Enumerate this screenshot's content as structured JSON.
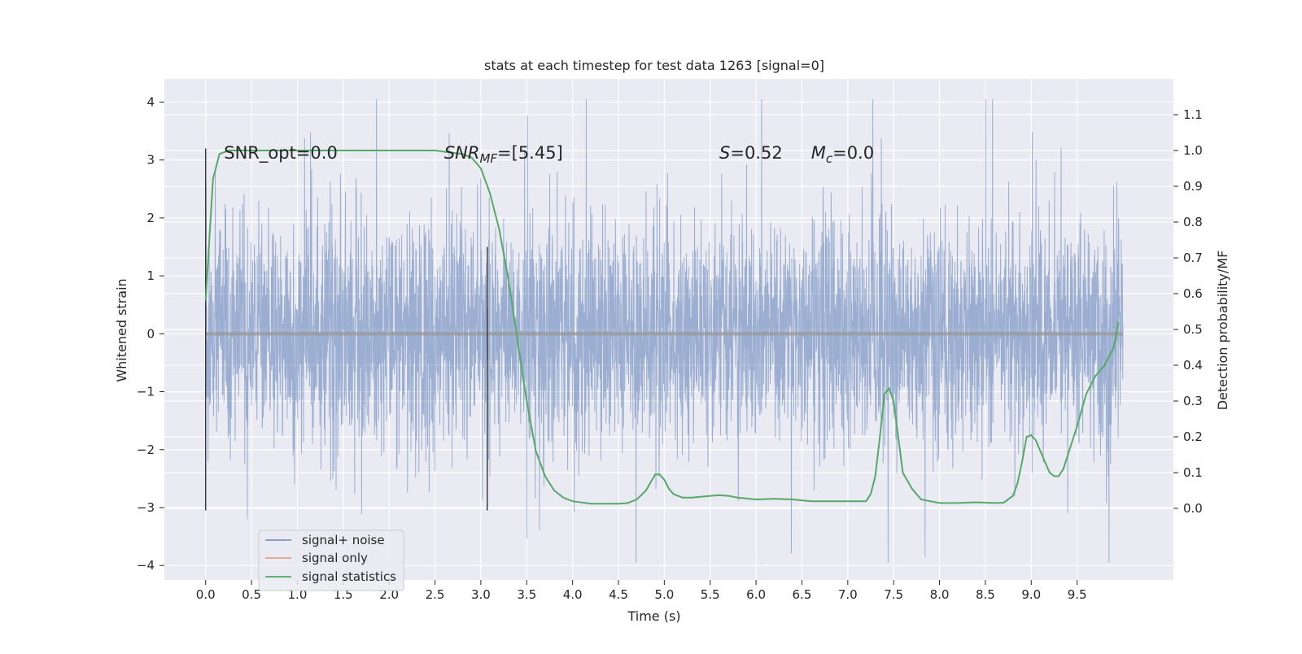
{
  "chart_data": {
    "type": "line",
    "title": "stats at each timestep for test data 1263 [signal=0]",
    "xlabel": "Time (s)",
    "ylabel_left": "Whitened strain",
    "ylabel_right": "Detection probability/MF",
    "xlim": [
      -0.45,
      10.55
    ],
    "ylim_left": [
      -4.25,
      4.4
    ],
    "ylim_right": [
      -0.2,
      1.2
    ],
    "x_ticks": [
      0.0,
      0.5,
      1.0,
      1.5,
      2.0,
      2.5,
      3.0,
      3.5,
      4.0,
      4.5,
      5.0,
      5.5,
      6.0,
      6.5,
      7.0,
      7.5,
      8.0,
      8.5,
      9.0,
      9.5
    ],
    "x_tick_labels": [
      "0.0",
      "0.5",
      "1.0",
      "1.5",
      "2.0",
      "2.5",
      "3.0",
      "3.5",
      "4.0",
      "4.5",
      "5.0",
      "5.5",
      "6.0",
      "6.5",
      "7.0",
      "7.5",
      "8.0",
      "8.5",
      "9.0",
      "9.5"
    ],
    "y_ticks_left": [
      -4,
      -3,
      -2,
      -1,
      0,
      1,
      2,
      3,
      4
    ],
    "y_tick_labels_left": [
      "−4",
      "−3",
      "−2",
      "−1",
      "0",
      "1",
      "2",
      "3",
      "4"
    ],
    "y_ticks_right": [
      0.0,
      0.1,
      0.2,
      0.3,
      0.4,
      0.5,
      0.6,
      0.7,
      0.8,
      0.9,
      1.0,
      1.1
    ],
    "y_tick_labels_right": [
      "0.0",
      "0.1",
      "0.2",
      "0.3",
      "0.4",
      "0.5",
      "0.6",
      "0.7",
      "0.8",
      "0.9",
      "1.0",
      "1.1"
    ],
    "grid": true,
    "legend_position": "lower-left",
    "colors": {
      "background": "#eaeaf2",
      "grid": "#ffffff",
      "signal_noise": "#4c72b0",
      "signal_only": "#dd8452",
      "statistics": "#55a868",
      "marker": "#333333"
    },
    "annotations": [
      {
        "text": "SNR_opt=0.0",
        "x": 0.2,
        "y": 3.12
      },
      {
        "text_parts": [
          "SNR",
          "MF",
          "=[5.45]"
        ],
        "x": 2.6,
        "y": 3.12
      },
      {
        "text_parts": [
          "S",
          "=0.52"
        ],
        "x": 5.6,
        "y": 3.12
      },
      {
        "text_parts": [
          "M",
          "c",
          "=0.0"
        ],
        "x": 6.6,
        "y": 3.12
      }
    ],
    "vertical_markers": [
      {
        "x": 0.0,
        "y0": -3.05,
        "y1": 3.2
      },
      {
        "x": 3.07,
        "y0": -3.05,
        "y1": 1.5
      }
    ],
    "series": [
      {
        "name": "signal+ noise",
        "axis": "left",
        "style": "dense-noise",
        "x_range": [
          0.0,
          10.0
        ],
        "typical_amplitude": 2.0,
        "peak_range": [
          -3.95,
          4.05
        ]
      },
      {
        "name": "signal only",
        "axis": "left",
        "x": [
          0.0,
          10.0
        ],
        "y": [
          0.0,
          0.0
        ]
      },
      {
        "name": "signal statistics",
        "axis": "right",
        "x": [
          0.0,
          0.08,
          0.15,
          0.25,
          0.5,
          1.0,
          1.5,
          2.0,
          2.5,
          2.8,
          2.9,
          3.0,
          3.1,
          3.2,
          3.3,
          3.4,
          3.5,
          3.55,
          3.6,
          3.7,
          3.8,
          3.9,
          4.0,
          4.2,
          4.5,
          4.6,
          4.7,
          4.8,
          4.9,
          4.95,
          5.0,
          5.05,
          5.1,
          5.2,
          5.3,
          5.5,
          5.6,
          5.7,
          5.8,
          6.0,
          6.2,
          6.4,
          6.6,
          6.8,
          7.0,
          7.1,
          7.2,
          7.25,
          7.3,
          7.35,
          7.4,
          7.45,
          7.5,
          7.55,
          7.6,
          7.7,
          7.8,
          8.0,
          8.2,
          8.4,
          8.6,
          8.7,
          8.8,
          8.85,
          8.9,
          8.95,
          9.0,
          9.05,
          9.1,
          9.15,
          9.2,
          9.25,
          9.3,
          9.35,
          9.4,
          9.5,
          9.6,
          9.7,
          9.8,
          9.9,
          9.95
        ],
        "y": [
          0.58,
          0.92,
          0.99,
          1.0,
          1.0,
          1.0,
          1.0,
          1.0,
          1.0,
          0.99,
          0.98,
          0.95,
          0.88,
          0.78,
          0.64,
          0.47,
          0.3,
          0.23,
          0.16,
          0.09,
          0.05,
          0.03,
          0.02,
          0.013,
          0.013,
          0.015,
          0.025,
          0.05,
          0.095,
          0.095,
          0.08,
          0.055,
          0.04,
          0.03,
          0.03,
          0.035,
          0.037,
          0.035,
          0.03,
          0.025,
          0.027,
          0.025,
          0.02,
          0.02,
          0.02,
          0.02,
          0.02,
          0.04,
          0.09,
          0.2,
          0.32,
          0.335,
          0.3,
          0.2,
          0.1,
          0.055,
          0.025,
          0.015,
          0.015,
          0.017,
          0.015,
          0.016,
          0.035,
          0.07,
          0.13,
          0.2,
          0.205,
          0.19,
          0.16,
          0.13,
          0.1,
          0.09,
          0.09,
          0.11,
          0.15,
          0.23,
          0.32,
          0.37,
          0.4,
          0.45,
          0.52
        ]
      }
    ]
  }
}
